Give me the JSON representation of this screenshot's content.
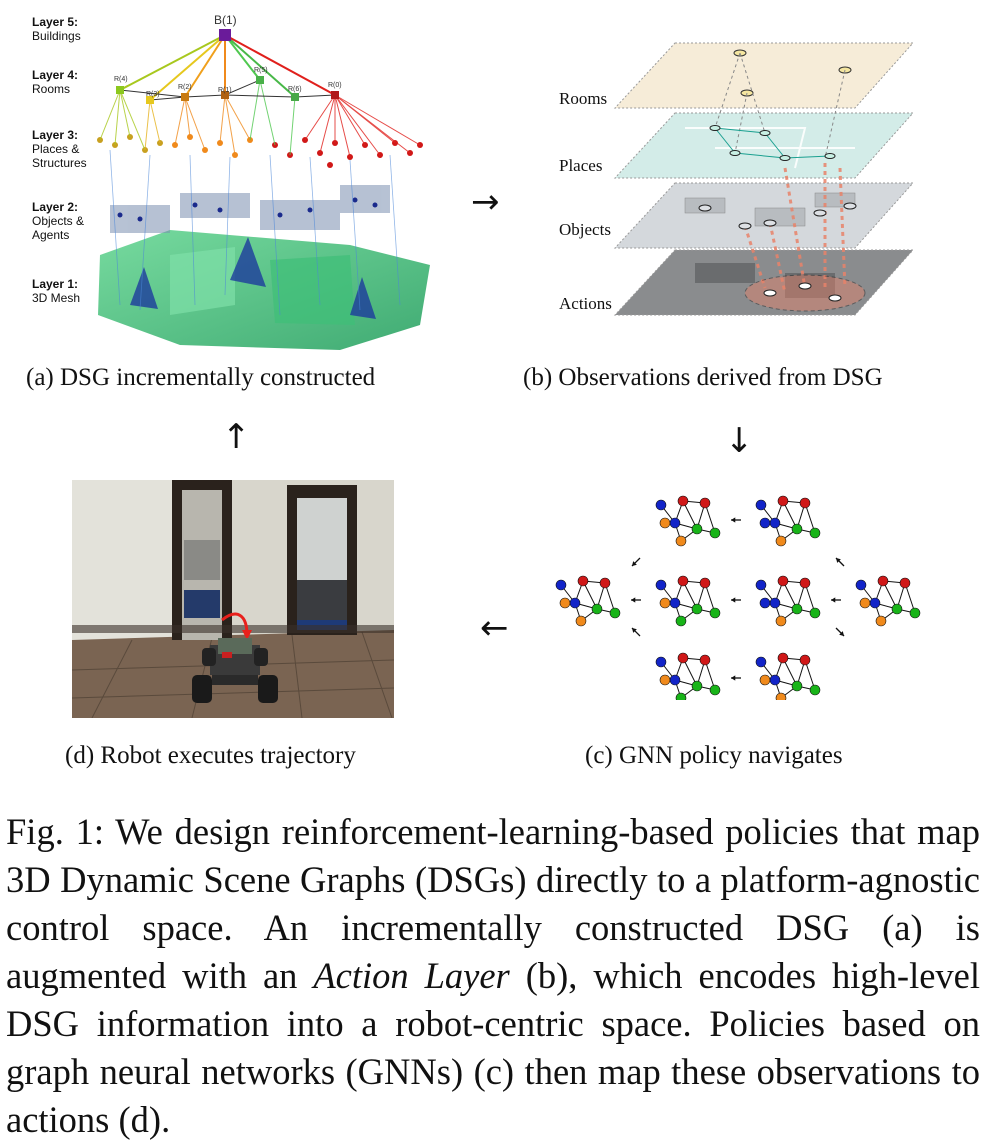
{
  "panel_a": {
    "layers": [
      {
        "title": "Layer 5:",
        "sub": "Buildings"
      },
      {
        "title": "Layer 4:",
        "sub": "Rooms"
      },
      {
        "title": "Layer 3:",
        "sub": "Places &",
        "sub2": "Structures"
      },
      {
        "title": "Layer 2:",
        "sub": "Objects &",
        "sub2": "Agents"
      },
      {
        "title": "Layer 1:",
        "sub": "3D Mesh"
      }
    ],
    "building_label": "B(1)",
    "room_labels": [
      "R(4)",
      "R(3)",
      "R(2)",
      "R(1)",
      "R(5)",
      "R(6)",
      "R(0)"
    ],
    "colors": {
      "building": "#6a1b9a",
      "yellow": "#e6d21e",
      "orange": "#f08a1c",
      "red": "#e0201c",
      "green": "#38c46a",
      "mesh": "#2fb36e"
    }
  },
  "panel_b": {
    "labels": [
      "Rooms",
      "Places",
      "Objects",
      "Actions"
    ],
    "colors": {
      "rooms": "#f6ecd8",
      "places": "#d3ece8",
      "objects": "#d4d8dc",
      "actions": "#8a8c8e",
      "dashed": "#e8836a"
    }
  },
  "panel_c": {
    "node_colors": {
      "blue": "#1224c8",
      "red": "#d01818",
      "green": "#18b418",
      "orange": "#f08a1c"
    }
  },
  "subcaptions": {
    "a": "(a) DSG incrementally constructed",
    "b": "(b) Observations derived from DSG",
    "c": "(c) GNN policy navigates",
    "d": "(d) Robot executes trajectory"
  },
  "arrows": {
    "right": "→",
    "down": "↓",
    "up": "↑",
    "left": "←"
  },
  "caption": {
    "part1": "Fig. 1:  We design reinforcement-learning-based policies that map 3D Dynamic Scene Graphs (DSGs) directly to a platform-agnostic control space. An incrementally constructed DSG (a) is augmented with an ",
    "italic": "Action Layer",
    "part2": " (b), which encodes high-level DSG information into a robot-centric space. Policies based on graph neural networks (GNNs) (c) then map these observations to actions (d)."
  }
}
